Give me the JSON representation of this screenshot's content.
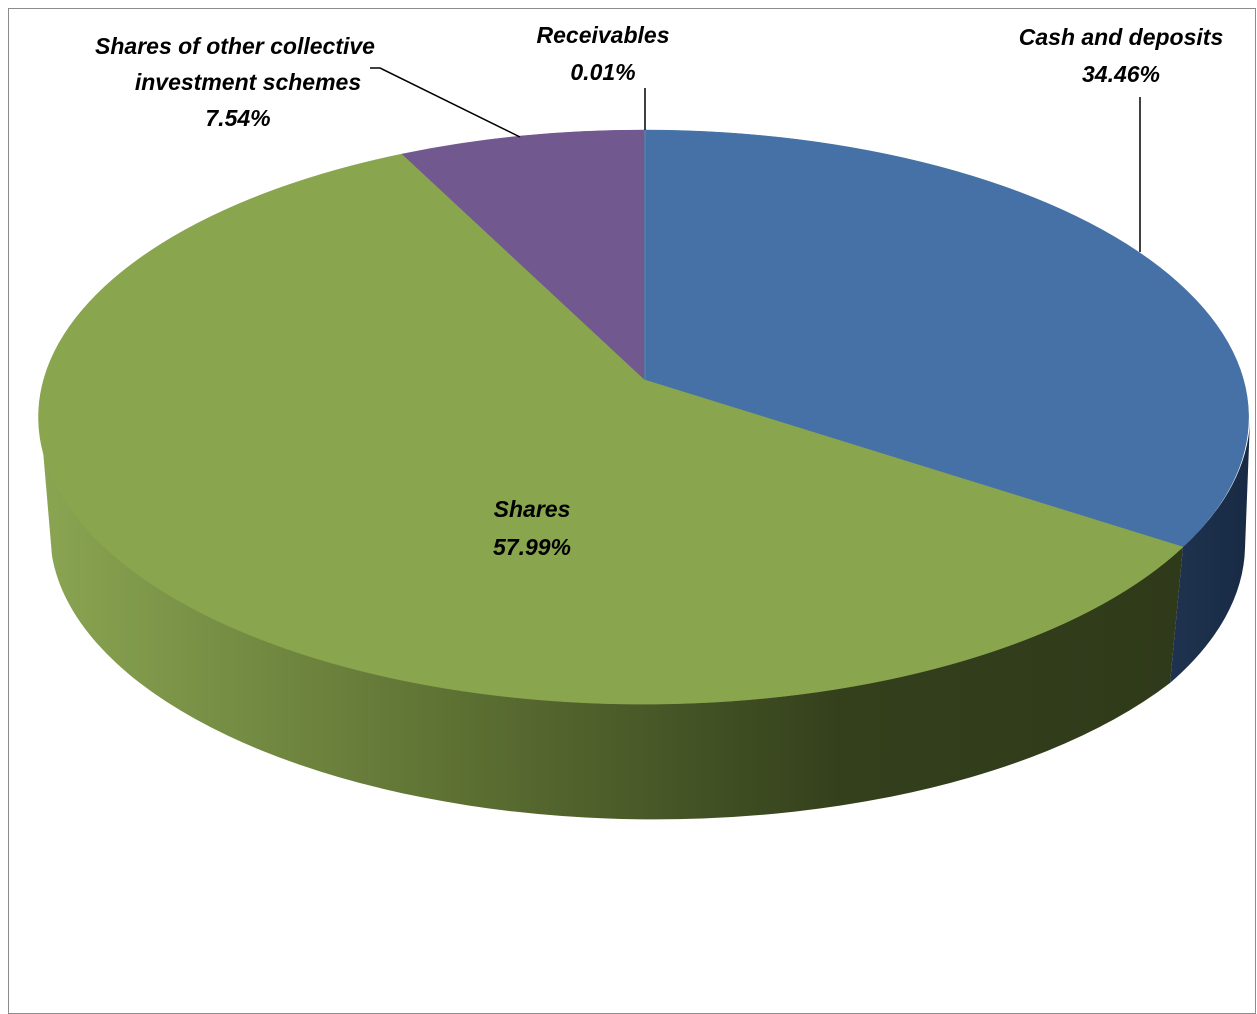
{
  "chart_data": {
    "type": "pie",
    "style": "3d",
    "slices": [
      {
        "label": "Cash and deposits",
        "value": 34.46,
        "value_label": "34.46%",
        "color": "#4571a6"
      },
      {
        "label": "Shares",
        "value": 57.99,
        "value_label": "57.99%",
        "color": "#89a54e"
      },
      {
        "label": "Shares of other collective investment schemes",
        "value": 7.54,
        "value_label": "7.54%",
        "color": "#71588f"
      },
      {
        "label": "Receivables",
        "value": 0.01,
        "value_label": "0.01%",
        "color": "#4198af"
      }
    ],
    "label_lines": [
      "Shares of other collective",
      "investment schemes"
    ],
    "legend": "none"
  }
}
